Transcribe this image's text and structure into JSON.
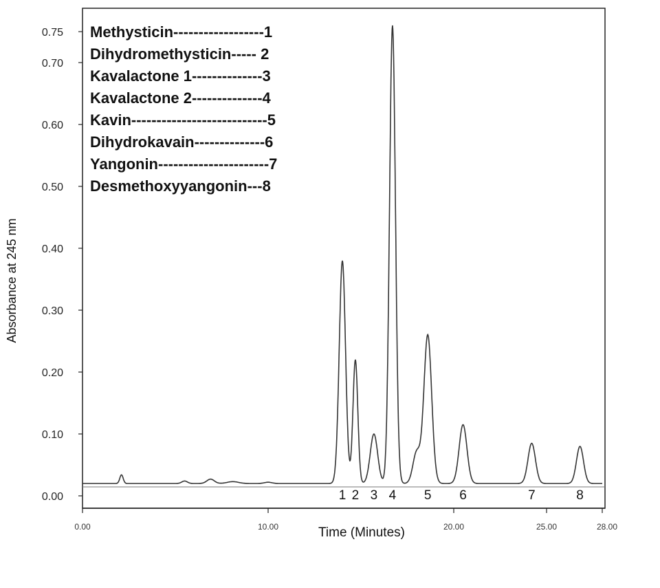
{
  "chart_data": {
    "type": "line",
    "title": "",
    "xlabel": "Time (Minutes)",
    "ylabel": "Absorbance at 245 nm",
    "xlim": [
      0,
      28
    ],
    "ylim": [
      0,
      0.75
    ],
    "x_ticks": [
      {
        "value": 0,
        "label": "0.00"
      },
      {
        "value": 10,
        "label": "10.00"
      },
      {
        "value": 20,
        "label": "20.00"
      },
      {
        "value": 25,
        "label": "25.00"
      },
      {
        "value": 28,
        "label": "28.00"
      }
    ],
    "y_ticks": [
      {
        "value": 0.0,
        "label": "0.00"
      },
      {
        "value": 0.1,
        "label": "0.10"
      },
      {
        "value": 0.2,
        "label": "0.20"
      },
      {
        "value": 0.3,
        "label": "0.30"
      },
      {
        "value": 0.4,
        "label": "0.40"
      },
      {
        "value": 0.5,
        "label": "0.50"
      },
      {
        "value": 0.6,
        "label": "0.60"
      },
      {
        "value": 0.7,
        "label": "0.70"
      },
      {
        "value": 0.75,
        "label": "0.75"
      }
    ],
    "grid": false,
    "legend_position": "top-left",
    "legend": [
      "Methysticin------------------1",
      "Dihydromethysticin----- 2",
      "Kavalactone 1--------------3",
      "Kavalactone 2--------------4",
      "Kavin---------------------------5",
      "Dihydrokavain--------------6",
      "Yangonin----------------------7",
      "Desmethoxyyangonin---8"
    ],
    "baseline": 0.02,
    "series": [
      {
        "peaks": [
          {
            "label": "1",
            "time": 14.0,
            "absorbance": 0.38
          },
          {
            "label": "2",
            "time": 14.7,
            "absorbance": 0.22
          },
          {
            "label": "3",
            "time": 15.7,
            "absorbance": 0.1
          },
          {
            "label": "4",
            "time": 16.7,
            "absorbance": 0.76
          },
          {
            "label": "5",
            "time": 18.6,
            "absorbance": 0.26
          },
          {
            "label": "6",
            "time": 20.5,
            "absorbance": 0.115
          },
          {
            "label": "7",
            "time": 24.2,
            "absorbance": 0.085
          },
          {
            "label": "8",
            "time": 26.8,
            "absorbance": 0.08
          }
        ]
      }
    ]
  }
}
